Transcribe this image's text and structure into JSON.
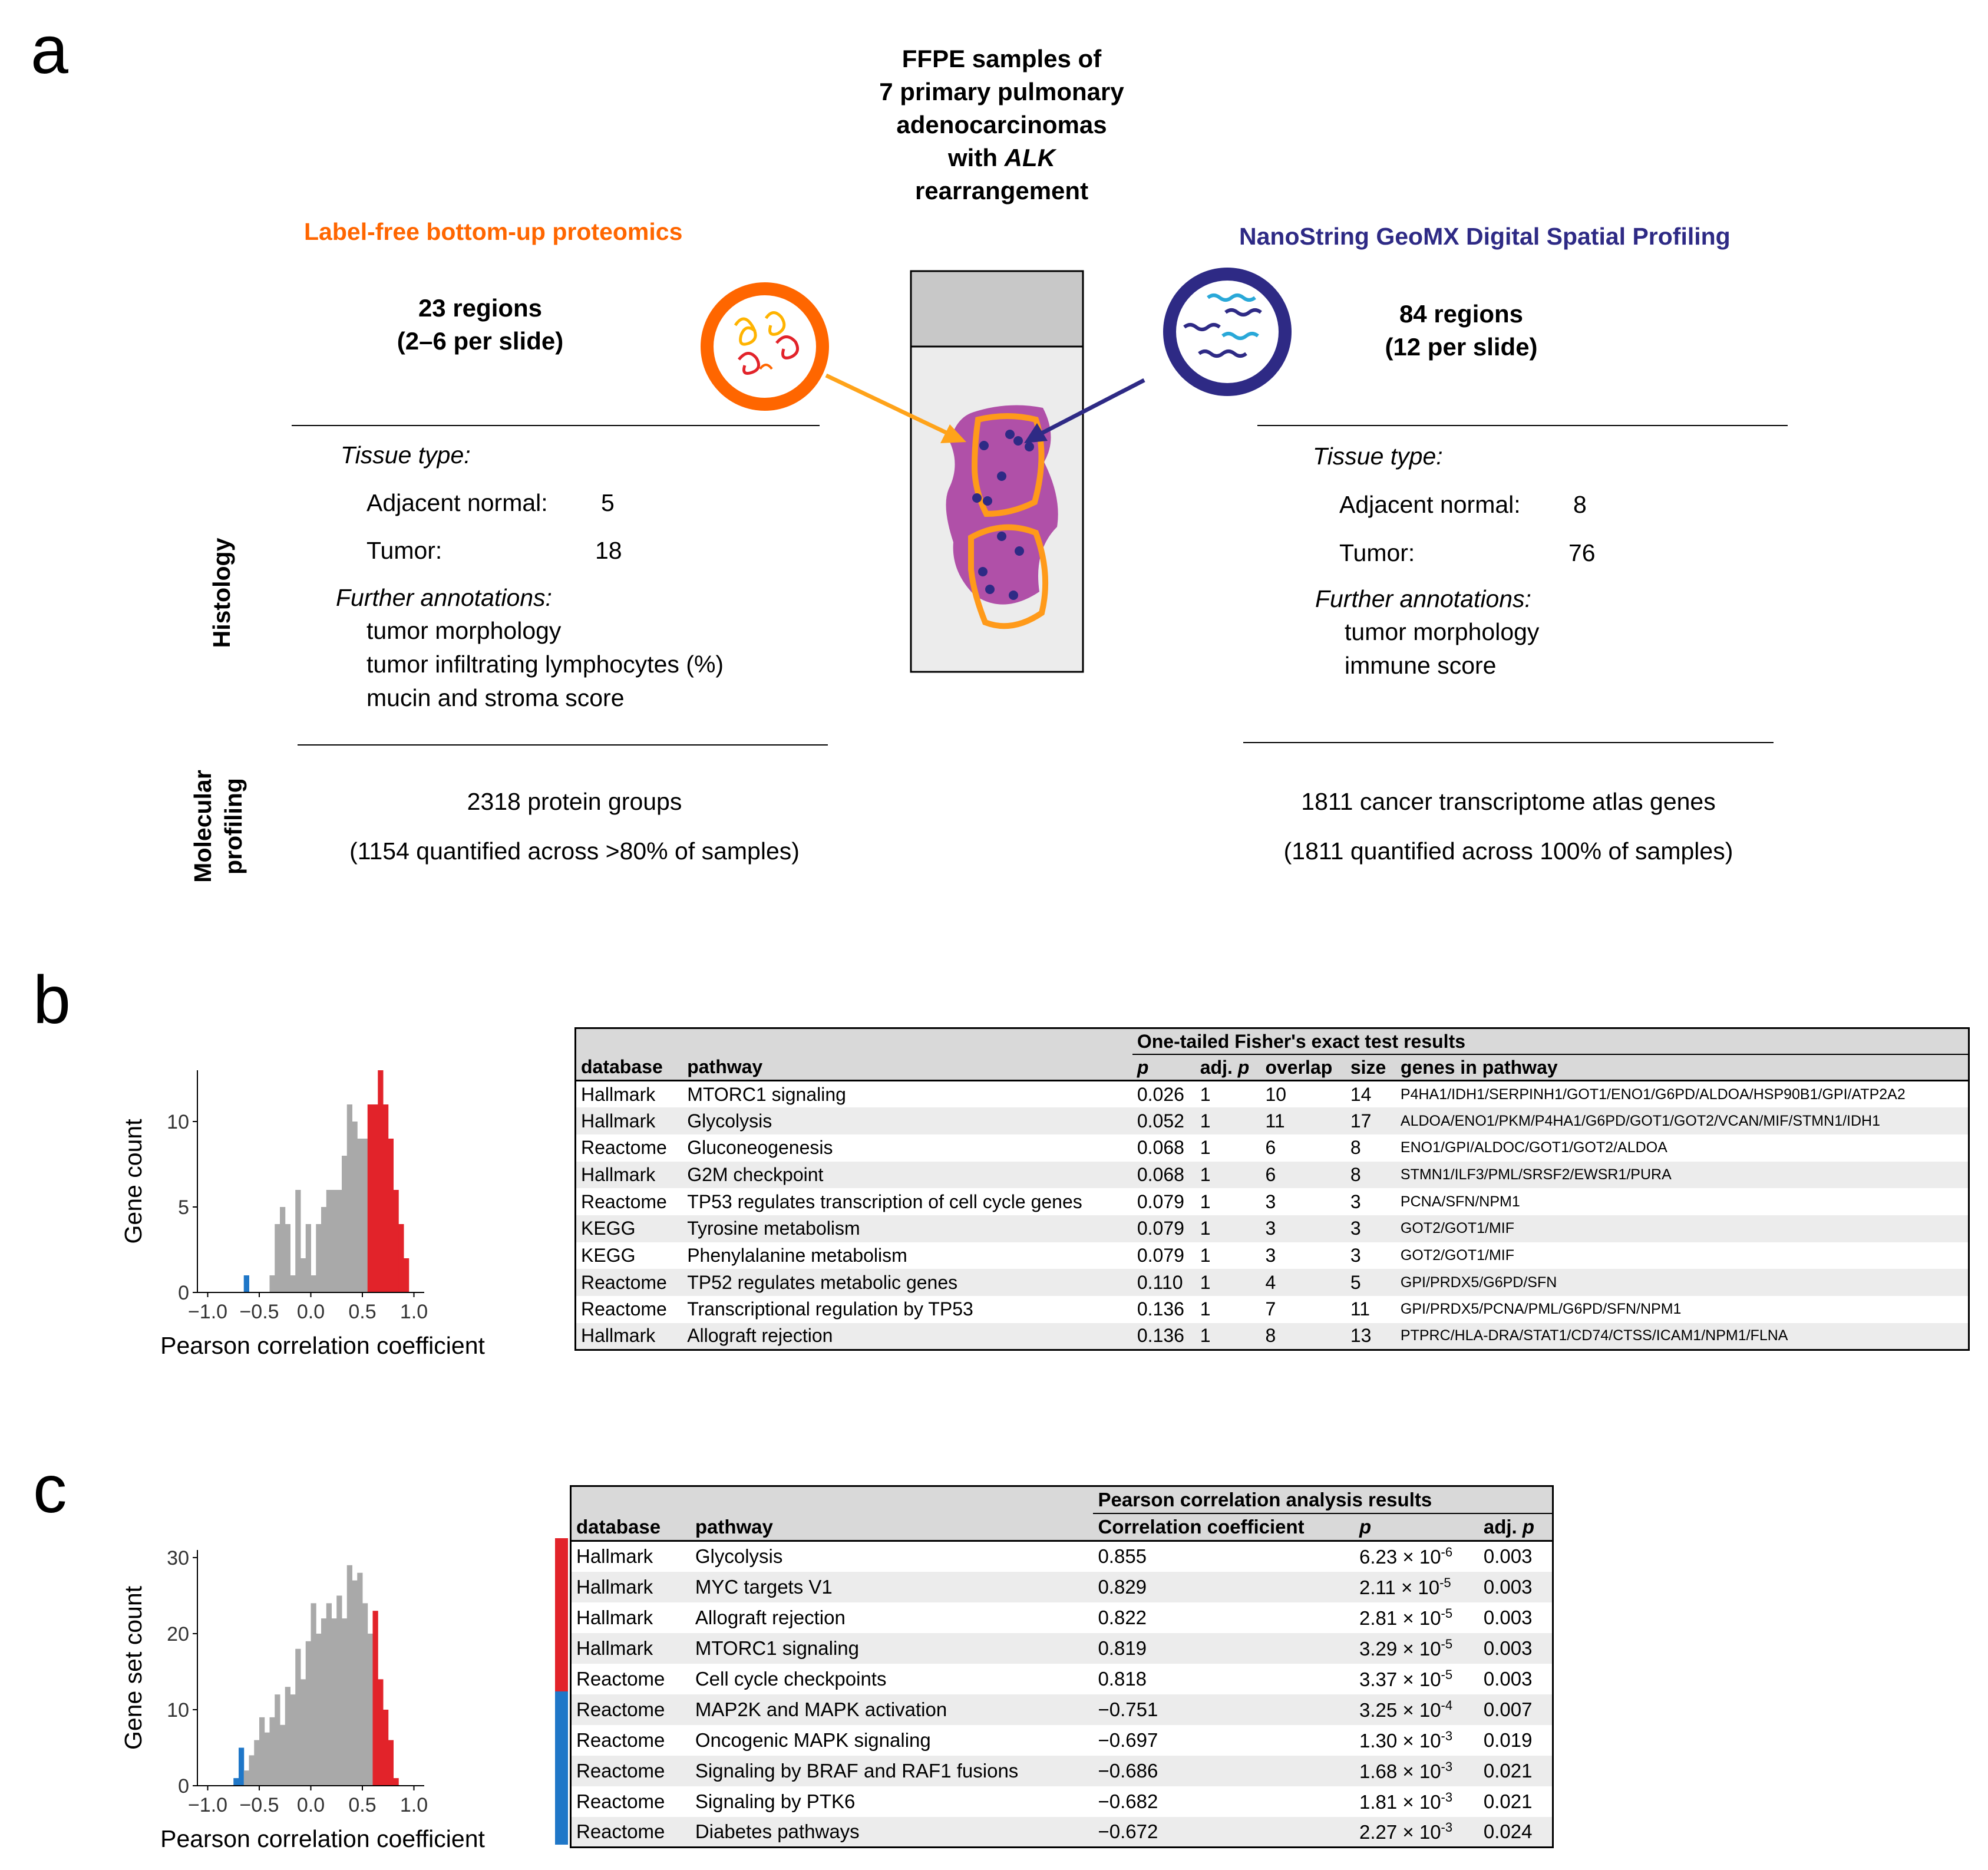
{
  "panels": {
    "a": "a",
    "b": "b",
    "c": "c"
  },
  "panel_a": {
    "center_title_lines": [
      "FFPE samples of",
      "7 primary pulmonary",
      "adenocarcinomas",
      "with ",
      "ALK",
      "rearrangement"
    ],
    "left": {
      "method": "Label-free bottom-up proteomics",
      "regions": "23 regions",
      "per_slide": "(2–6 per slide)",
      "tissue_type_label": "Tissue type:",
      "adjacent_label": "Adjacent normal:",
      "adjacent_value": "5",
      "tumor_label": "Tumor:",
      "tumor_value": "18",
      "further_label": "Further annotations:",
      "annotations": [
        "tumor morphology",
        "tumor infiltrating lymphocytes (%)",
        "mucin and stroma score"
      ],
      "molecular_1": "2318 protein groups",
      "molecular_2": "(1154 quantified across >80% of samples)"
    },
    "right": {
      "method": "NanoString GeoMX Digital Spatial Profiling",
      "regions": "84 regions",
      "per_slide": "(12 per slide)",
      "tissue_type_label": "Tissue type:",
      "adjacent_label": "Adjacent normal:",
      "adjacent_value": "8",
      "tumor_label": "Tumor:",
      "tumor_value": "76",
      "further_label": "Further annotations:",
      "annotations": [
        "tumor morphology",
        "immune score"
      ],
      "molecular_1": "1811 cancer transcriptome atlas genes",
      "molecular_2": "(1811 quantified across 100% of samples)"
    },
    "side_labels": {
      "histology": "Histology",
      "molecular_1": "Molecular",
      "molecular_2": "profiling"
    },
    "colors": {
      "proteomics": "#ff6600",
      "geomx": "#2e2a85",
      "tissue": "#b050a8",
      "outline": "#ff9a1a"
    }
  },
  "chart_data": [
    {
      "type": "bar",
      "panel": "b",
      "title": "",
      "xlabel": "Pearson correlation coefficient",
      "ylabel": "Gene count",
      "xlim": [
        -1.1,
        1.1
      ],
      "ylim": [
        0,
        13
      ],
      "xticks": [
        "−1.0",
        "−0.5",
        "0.0",
        "0.5",
        "1.0"
      ],
      "xtick_values": [
        -1.0,
        -0.5,
        0.0,
        0.5,
        1.0
      ],
      "yticks": [
        "0",
        "5",
        "10"
      ],
      "ytick_values": [
        0,
        5,
        10
      ],
      "bin_width": 0.05,
      "bins": [
        {
          "x": -0.625,
          "count": 1,
          "group": "negative"
        },
        {
          "x": -0.375,
          "count": 1,
          "group": "other"
        },
        {
          "x": -0.325,
          "count": 4,
          "group": "other"
        },
        {
          "x": -0.275,
          "count": 5,
          "group": "other"
        },
        {
          "x": -0.225,
          "count": 4,
          "group": "other"
        },
        {
          "x": -0.175,
          "count": 1,
          "group": "other"
        },
        {
          "x": -0.125,
          "count": 6,
          "group": "other"
        },
        {
          "x": -0.075,
          "count": 2,
          "group": "other"
        },
        {
          "x": -0.025,
          "count": 4,
          "group": "other"
        },
        {
          "x": 0.025,
          "count": 1,
          "group": "other"
        },
        {
          "x": 0.075,
          "count": 4,
          "group": "other"
        },
        {
          "x": 0.125,
          "count": 5,
          "group": "other"
        },
        {
          "x": 0.175,
          "count": 6,
          "group": "other"
        },
        {
          "x": 0.225,
          "count": 6,
          "group": "other"
        },
        {
          "x": 0.275,
          "count": 6,
          "group": "other"
        },
        {
          "x": 0.325,
          "count": 8,
          "group": "other"
        },
        {
          "x": 0.375,
          "count": 11,
          "group": "other"
        },
        {
          "x": 0.425,
          "count": 10,
          "group": "other"
        },
        {
          "x": 0.475,
          "count": 9,
          "group": "other"
        },
        {
          "x": 0.525,
          "count": 9,
          "group": "other"
        },
        {
          "x": 0.575,
          "count": 11,
          "group": "positive"
        },
        {
          "x": 0.625,
          "count": 11,
          "group": "positive"
        },
        {
          "x": 0.675,
          "count": 13,
          "group": "positive"
        },
        {
          "x": 0.725,
          "count": 11,
          "group": "positive"
        },
        {
          "x": 0.775,
          "count": 9,
          "group": "positive"
        },
        {
          "x": 0.825,
          "count": 6,
          "group": "positive"
        },
        {
          "x": 0.875,
          "count": 4,
          "group": "positive"
        },
        {
          "x": 0.925,
          "count": 2,
          "group": "positive"
        }
      ],
      "colors": {
        "negative": "#1f77c8",
        "other": "#a9a9a9",
        "positive": "#e2232a"
      }
    },
    {
      "type": "bar",
      "panel": "c",
      "title": "",
      "xlabel": "Pearson correlation coefficient",
      "ylabel": "Gene set count",
      "xlim": [
        -1.1,
        1.1
      ],
      "ylim": [
        0,
        31
      ],
      "xticks": [
        "−1.0",
        "−0.5",
        "0.0",
        "0.5",
        "1.0"
      ],
      "xtick_values": [
        -1.0,
        -0.5,
        0.0,
        0.5,
        1.0
      ],
      "yticks": [
        "0",
        "10",
        "20",
        "30"
      ],
      "ytick_values": [
        0,
        10,
        20,
        30
      ],
      "bin_width": 0.05,
      "bins": [
        {
          "x": -0.725,
          "count": 1,
          "group": "negative"
        },
        {
          "x": -0.675,
          "count": 5,
          "group": "negative"
        },
        {
          "x": -0.625,
          "count": 2,
          "group": "other"
        },
        {
          "x": -0.575,
          "count": 4,
          "group": "other"
        },
        {
          "x": -0.525,
          "count": 6,
          "group": "other"
        },
        {
          "x": -0.475,
          "count": 9,
          "group": "other"
        },
        {
          "x": -0.425,
          "count": 7,
          "group": "other"
        },
        {
          "x": -0.375,
          "count": 9,
          "group": "other"
        },
        {
          "x": -0.325,
          "count": 12,
          "group": "other"
        },
        {
          "x": -0.275,
          "count": 8,
          "group": "other"
        },
        {
          "x": -0.225,
          "count": 13,
          "group": "other"
        },
        {
          "x": -0.175,
          "count": 12,
          "group": "other"
        },
        {
          "x": -0.125,
          "count": 18,
          "group": "other"
        },
        {
          "x": -0.075,
          "count": 14,
          "group": "other"
        },
        {
          "x": -0.025,
          "count": 19,
          "group": "other"
        },
        {
          "x": 0.025,
          "count": 24,
          "group": "other"
        },
        {
          "x": 0.075,
          "count": 20,
          "group": "other"
        },
        {
          "x": 0.125,
          "count": 22,
          "group": "other"
        },
        {
          "x": 0.175,
          "count": 24,
          "group": "other"
        },
        {
          "x": 0.225,
          "count": 22,
          "group": "other"
        },
        {
          "x": 0.275,
          "count": 25,
          "group": "other"
        },
        {
          "x": 0.325,
          "count": 22,
          "group": "other"
        },
        {
          "x": 0.375,
          "count": 29,
          "group": "other"
        },
        {
          "x": 0.425,
          "count": 27,
          "group": "other"
        },
        {
          "x": 0.475,
          "count": 28,
          "group": "other"
        },
        {
          "x": 0.525,
          "count": 24,
          "group": "other"
        },
        {
          "x": 0.575,
          "count": 20,
          "group": "other"
        },
        {
          "x": 0.625,
          "count": 23,
          "group": "positive"
        },
        {
          "x": 0.675,
          "count": 14,
          "group": "positive"
        },
        {
          "x": 0.725,
          "count": 10,
          "group": "positive"
        },
        {
          "x": 0.775,
          "count": 6,
          "group": "positive"
        },
        {
          "x": 0.825,
          "count": 1,
          "group": "positive"
        }
      ],
      "colors": {
        "negative": "#1f77c8",
        "other": "#a9a9a9",
        "positive": "#e2232a"
      }
    }
  ],
  "table_b": {
    "group_header": "One-tailed Fisher's exact test results",
    "columns": [
      "database",
      "pathway",
      "p",
      "adj. p",
      "overlap",
      "size",
      "genes in pathway"
    ],
    "rows": [
      [
        "Hallmark",
        "MTORC1 signaling",
        "0.026",
        "1",
        "10",
        "14",
        "P4HA1/IDH1/SERPINH1/GOT1/ENO1/G6PD/ALDOA/HSP90B1/GPI/ATP2A2"
      ],
      [
        "Hallmark",
        "Glycolysis",
        "0.052",
        "1",
        "11",
        "17",
        "ALDOA/ENO1/PKM/P4HA1/G6PD/GOT1/GOT2/VCAN/MIF/STMN1/IDH1"
      ],
      [
        "Reactome",
        "Gluconeogenesis",
        "0.068",
        "1",
        "6",
        "8",
        "ENO1/GPI/ALDOC/GOT1/GOT2/ALDOA"
      ],
      [
        "Hallmark",
        "G2M checkpoint",
        "0.068",
        "1",
        "6",
        "8",
        "STMN1/ILF3/PML/SRSF2/EWSR1/PURA"
      ],
      [
        "Reactome",
        "TP53 regulates transcription of cell cycle genes",
        "0.079",
        "1",
        "3",
        "3",
        "PCNA/SFN/NPM1"
      ],
      [
        "KEGG",
        "Tyrosine metabolism",
        "0.079",
        "1",
        "3",
        "3",
        "GOT2/GOT1/MIF"
      ],
      [
        "KEGG",
        "Phenylalanine metabolism",
        "0.079",
        "1",
        "3",
        "3",
        "GOT2/GOT1/MIF"
      ],
      [
        "Reactome",
        "TP52 regulates metabolic genes",
        "0.110",
        "1",
        "4",
        "5",
        "GPI/PRDX5/G6PD/SFN"
      ],
      [
        "Reactome",
        "Transcriptional regulation by TP53",
        "0.136",
        "1",
        "7",
        "11",
        "GPI/PRDX5/PCNA/PML/G6PD/SFN/NPM1"
      ],
      [
        "Hallmark",
        "Allograft rejection",
        "0.136",
        "1",
        "8",
        "13",
        "PTPRC/HLA-DRA/STAT1/CD74/CTSS/ICAM1/NPM1/FLNA"
      ]
    ]
  },
  "table_c": {
    "group_header": "Pearson correlation analysis results",
    "columns": [
      "database",
      "pathway",
      "Correlation coefficient",
      "p",
      "adj. p"
    ],
    "rows": [
      {
        "db": "Hallmark",
        "pathway": "Glycolysis",
        "r": "0.855",
        "p_mant": "6.23 × 10",
        "p_exp": "-6",
        "adj": "0.003",
        "dir": "positive"
      },
      {
        "db": "Hallmark",
        "pathway": "MYC targets V1",
        "r": "0.829",
        "p_mant": "2.11 × 10",
        "p_exp": "-5",
        "adj": "0.003",
        "dir": "positive"
      },
      {
        "db": "Hallmark",
        "pathway": "Allograft rejection",
        "r": "0.822",
        "p_mant": "2.81 × 10",
        "p_exp": "-5",
        "adj": "0.003",
        "dir": "positive"
      },
      {
        "db": "Hallmark",
        "pathway": "MTORC1 signaling",
        "r": "0.819",
        "p_mant": "3.29 × 10",
        "p_exp": "-5",
        "adj": "0.003",
        "dir": "positive"
      },
      {
        "db": "Reactome",
        "pathway": "Cell cycle checkpoints",
        "r": "0.818",
        "p_mant": "3.37 × 10",
        "p_exp": "-5",
        "adj": "0.003",
        "dir": "positive"
      },
      {
        "db": "Reactome",
        "pathway": "MAP2K and MAPK activation",
        "r": "−0.751",
        "p_mant": "3.25 × 10",
        "p_exp": "-4",
        "adj": "0.007",
        "dir": "negative"
      },
      {
        "db": "Reactome",
        "pathway": "Oncogenic MAPK signaling",
        "r": "−0.697",
        "p_mant": "1.30 × 10",
        "p_exp": "-3",
        "adj": "0.019",
        "dir": "negative"
      },
      {
        "db": "Reactome",
        "pathway": "Signaling by BRAF and RAF1 fusions",
        "r": "−0.686",
        "p_mant": "1.68 × 10",
        "p_exp": "-3",
        "adj": "0.021",
        "dir": "negative"
      },
      {
        "db": "Reactome",
        "pathway": "Signaling by PTK6",
        "r": "−0.682",
        "p_mant": "1.81 × 10",
        "p_exp": "-3",
        "adj": "0.021",
        "dir": "negative"
      },
      {
        "db": "Reactome",
        "pathway": "Diabetes pathways",
        "r": "−0.672",
        "p_mant": "2.27 × 10",
        "p_exp": "-3",
        "adj": "0.024",
        "dir": "negative"
      }
    ]
  }
}
